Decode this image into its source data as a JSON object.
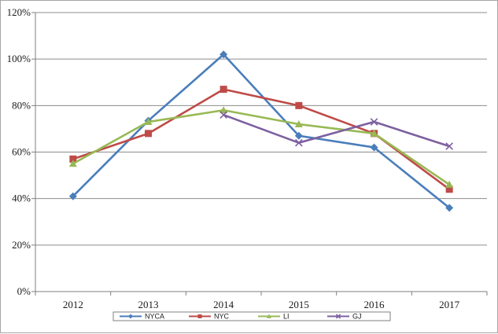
{
  "chart_data": {
    "type": "line",
    "title": "",
    "xlabel": "",
    "ylabel": "",
    "categories": [
      "2012",
      "2013",
      "2014",
      "2015",
      "2016",
      "2017"
    ],
    "ylim": [
      0,
      120
    ],
    "yticks": [
      0,
      20,
      40,
      60,
      80,
      100,
      120
    ],
    "ytick_labels": [
      "0%",
      "20%",
      "40%",
      "60%",
      "80%",
      "100%",
      "120%"
    ],
    "grid": "horizontal",
    "legend_position": "bottom",
    "series": [
      {
        "name": "NYCA",
        "color": "#4a7ebb",
        "marker": "diamond",
        "values": [
          41,
          73.5,
          102,
          67,
          62,
          36
        ]
      },
      {
        "name": "NYC",
        "color": "#be4b48",
        "marker": "square",
        "values": [
          57,
          68,
          87,
          80,
          68,
          44
        ]
      },
      {
        "name": "LI",
        "color": "#98b954",
        "marker": "triangle",
        "values": [
          55,
          73,
          78,
          72,
          68,
          46
        ]
      },
      {
        "name": "GJ",
        "color": "#7d60a0",
        "marker": "x",
        "values": [
          null,
          null,
          76,
          64,
          73,
          62.5
        ]
      }
    ]
  }
}
